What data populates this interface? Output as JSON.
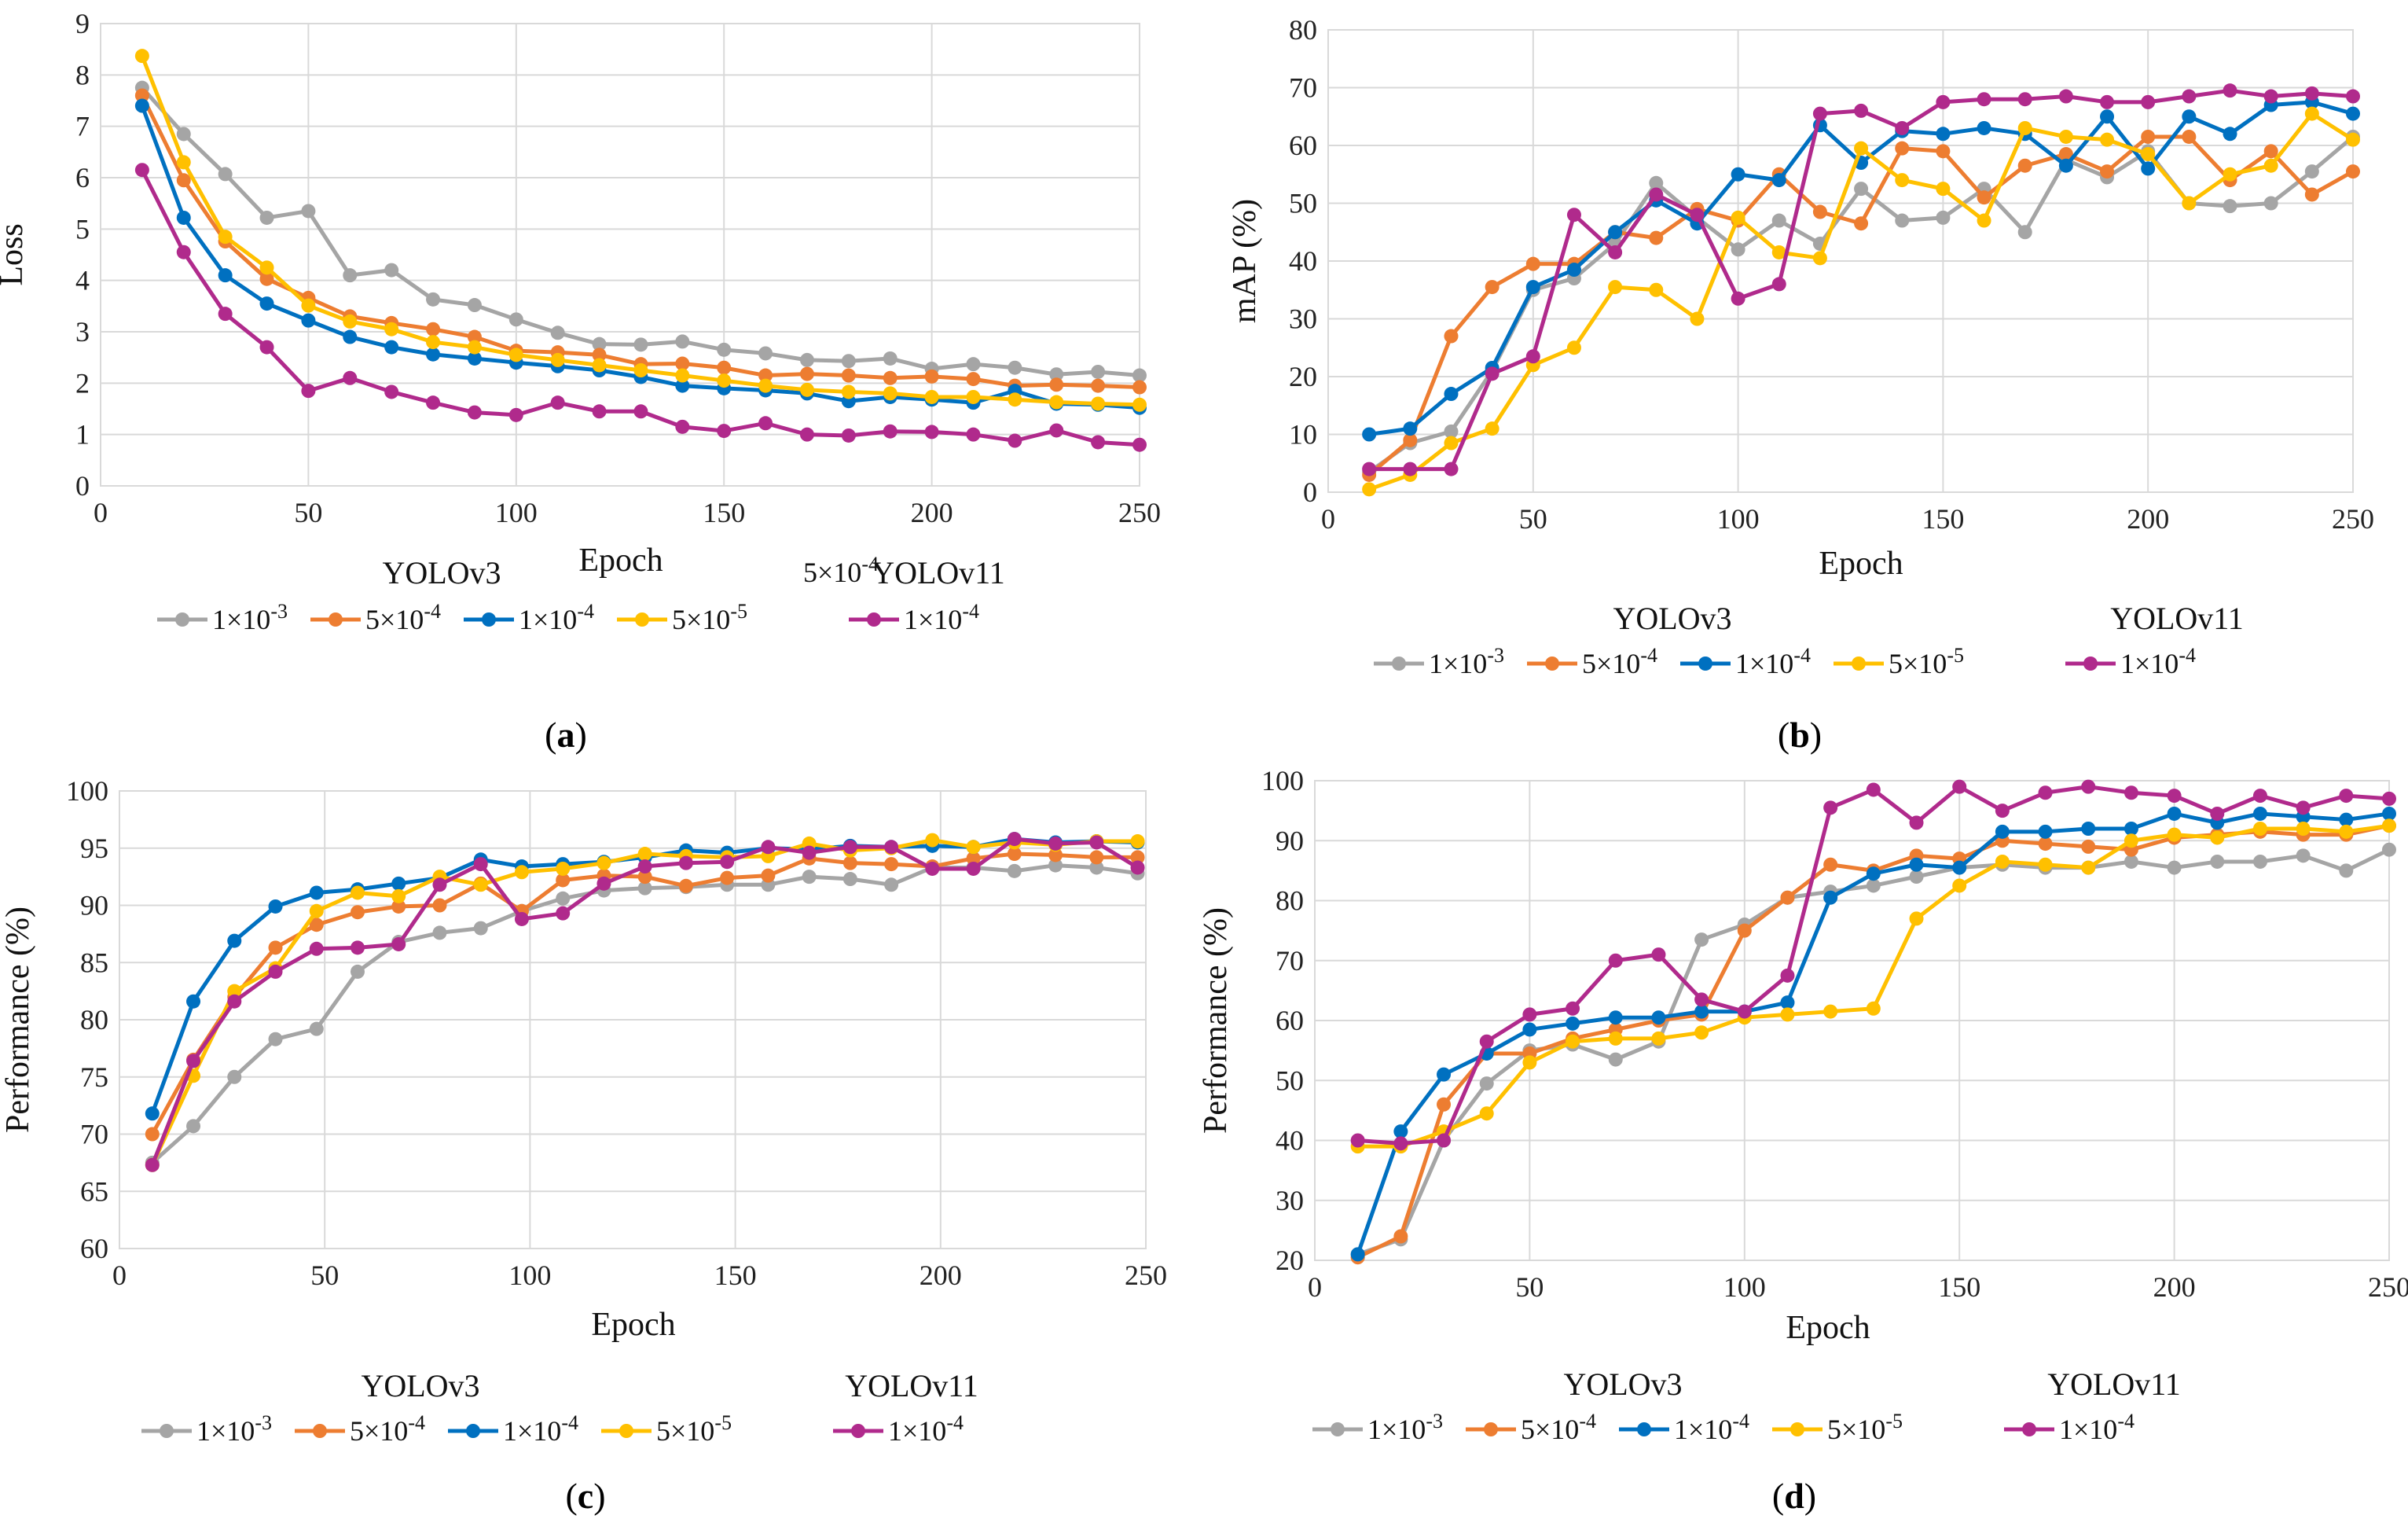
{
  "figure": {
    "legend_groups": {
      "left": "YOLOv3",
      "right": "YOLOv11"
    },
    "series_styles": [
      {
        "key": "s1",
        "label_base": "1×10",
        "label_exp": "-3",
        "color": "#A5A5A5"
      },
      {
        "key": "s2",
        "label_base": "5×10",
        "label_exp": "-4",
        "color": "#ED7D31"
      },
      {
        "key": "s3",
        "label_base": "1×10",
        "label_exp": "-4",
        "color": "#0070C0"
      },
      {
        "key": "s4",
        "label_base": "5×10",
        "label_exp": "-5",
        "color": "#FFC000"
      },
      {
        "key": "s5",
        "label_base": "1×10",
        "label_exp": "-4",
        "color": "#B02A8C"
      }
    ],
    "stray_note": {
      "base": "5×10",
      "exp": "-4"
    }
  },
  "chart_data": [
    {
      "id": "a",
      "caption": "a",
      "type": "line",
      "xlabel": "Epoch",
      "ylabel": "Loss",
      "xlim": [
        0,
        250
      ],
      "ylim": [
        0,
        9
      ],
      "xticks": [
        0,
        50,
        100,
        150,
        200,
        250
      ],
      "yticks": [
        0,
        1,
        2,
        3,
        4,
        5,
        6,
        7,
        8,
        9
      ],
      "x": [
        10,
        20,
        30,
        40,
        50,
        60,
        70,
        80,
        90,
        100,
        110,
        120,
        130,
        140,
        150,
        160,
        170,
        180,
        190,
        200,
        210,
        220,
        230,
        240,
        250
      ],
      "series": [
        {
          "name": "YOLOv3 1×10-3",
          "values": [
            7.75,
            6.85,
            6.07,
            5.22,
            5.35,
            4.1,
            4.2,
            3.63,
            3.52,
            3.24,
            2.98,
            2.76,
            2.75,
            2.81,
            2.65,
            2.58,
            2.45,
            2.43,
            2.48,
            2.28,
            2.37,
            2.3,
            2.17,
            2.22,
            2.15
          ]
        },
        {
          "name": "YOLOv3 5×10-4",
          "values": [
            7.6,
            5.95,
            4.76,
            4.03,
            3.66,
            3.3,
            3.17,
            3.05,
            2.9,
            2.63,
            2.6,
            2.55,
            2.37,
            2.38,
            2.3,
            2.15,
            2.18,
            2.15,
            2.1,
            2.13,
            2.08,
            1.95,
            1.97,
            1.95,
            1.92
          ]
        },
        {
          "name": "YOLOv3 1×10-4",
          "values": [
            7.4,
            5.22,
            4.1,
            3.55,
            3.22,
            2.9,
            2.7,
            2.56,
            2.48,
            2.4,
            2.33,
            2.25,
            2.12,
            1.95,
            1.9,
            1.86,
            1.8,
            1.65,
            1.73,
            1.68,
            1.62,
            1.85,
            1.6,
            1.58,
            1.52
          ]
        },
        {
          "name": "YOLOv3 5×10-5",
          "values": [
            8.37,
            6.3,
            4.85,
            4.25,
            3.51,
            3.2,
            3.05,
            2.8,
            2.7,
            2.55,
            2.45,
            2.35,
            2.25,
            2.15,
            2.05,
            1.95,
            1.87,
            1.83,
            1.8,
            1.73,
            1.73,
            1.68,
            1.63,
            1.6,
            1.58
          ]
        },
        {
          "name": "YOLOv11 1×10-4",
          "values": [
            6.15,
            4.55,
            3.35,
            2.7,
            1.85,
            2.1,
            1.83,
            1.62,
            1.43,
            1.38,
            1.62,
            1.45,
            1.45,
            1.15,
            1.07,
            1.22,
            1.0,
            0.98,
            1.06,
            1.05,
            1.0,
            0.88,
            1.08,
            0.85,
            0.8
          ]
        }
      ]
    },
    {
      "id": "b",
      "caption": "b",
      "type": "line",
      "xlabel": "Epoch",
      "ylabel": "mAP (%)",
      "xlim": [
        0,
        250
      ],
      "ylim": [
        0,
        80
      ],
      "xticks": [
        0,
        50,
        100,
        150,
        200,
        250
      ],
      "yticks": [
        0,
        10,
        20,
        30,
        40,
        50,
        60,
        70,
        80
      ],
      "x": [
        10,
        20,
        30,
        40,
        50,
        60,
        70,
        80,
        90,
        100,
        110,
        120,
        130,
        140,
        150,
        160,
        170,
        180,
        190,
        200,
        210,
        220,
        230,
        240,
        250
      ],
      "series": [
        {
          "name": "YOLOv3 1×10-3",
          "values": [
            3.5,
            8.5,
            10.5,
            21.0,
            35.0,
            37.0,
            43.0,
            53.5,
            47.5,
            42.0,
            47.0,
            43.0,
            52.5,
            47.0,
            47.5,
            52.5,
            45.0,
            57.5,
            54.5,
            59.0,
            50.0,
            49.5,
            50.0,
            55.5,
            61.5
          ]
        },
        {
          "name": "YOLOv3 5×10-4",
          "values": [
            3.0,
            9.0,
            27.0,
            35.5,
            39.5,
            39.5,
            45.0,
            44.0,
            49.0,
            47.0,
            55.0,
            48.5,
            46.5,
            59.5,
            59.0,
            51.0,
            56.5,
            58.5,
            55.5,
            61.5,
            61.5,
            54.0,
            59.0,
            51.5,
            55.5
          ]
        },
        {
          "name": "YOLOv3 1×10-4",
          "values": [
            10.0,
            11.0,
            17.0,
            21.5,
            35.5,
            38.5,
            45.0,
            50.5,
            46.5,
            55.0,
            54.0,
            63.5,
            57.0,
            62.5,
            62.0,
            63.0,
            62.0,
            56.5,
            65.0,
            56.0,
            65.0,
            62.0,
            67.0,
            67.5,
            65.5
          ]
        },
        {
          "name": "YOLOv3 5×10-5",
          "values": [
            0.5,
            3.0,
            8.5,
            11.0,
            22.0,
            25.0,
            35.5,
            35.0,
            30.0,
            47.5,
            41.5,
            40.5,
            59.5,
            54.0,
            52.5,
            47.0,
            63.0,
            61.5,
            61.0,
            58.5,
            50.0,
            55.0,
            56.5,
            65.5,
            61.0
          ]
        },
        {
          "name": "YOLOv11 1×10-4",
          "values": [
            4.0,
            4.0,
            4.0,
            20.5,
            23.5,
            48.0,
            41.5,
            51.5,
            48.0,
            33.5,
            36.0,
            65.5,
            66.0,
            63.0,
            67.5,
            68.0,
            68.0,
            68.5,
            67.5,
            67.5,
            68.5,
            69.5,
            68.5,
            69.0,
            68.5
          ]
        }
      ]
    },
    {
      "id": "c",
      "caption": "c",
      "type": "line",
      "xlabel": "Epoch",
      "ylabel": "Performance (%)",
      "xlim": [
        0,
        250
      ],
      "ylim": [
        60,
        100
      ],
      "xticks": [
        0,
        50,
        100,
        150,
        200,
        250
      ],
      "yticks": [
        60,
        65,
        70,
        75,
        80,
        85,
        90,
        95,
        100
      ],
      "x": [
        8,
        18,
        28,
        38,
        48,
        58,
        68,
        78,
        88,
        98,
        108,
        118,
        128,
        138,
        148,
        158,
        168,
        178,
        188,
        198,
        208,
        218,
        228,
        238,
        248
      ],
      "series": [
        {
          "name": "YOLOv3 1×10-3",
          "values": [
            67.5,
            70.7,
            75.0,
            78.3,
            79.2,
            84.2,
            86.8,
            87.6,
            88.0,
            89.5,
            90.6,
            91.3,
            91.5,
            91.6,
            91.8,
            91.8,
            92.5,
            92.3,
            91.8,
            93.3,
            93.3,
            93.0,
            93.5,
            93.3,
            92.8
          ]
        },
        {
          "name": "YOLOv3 5×10-4",
          "values": [
            70.0,
            76.5,
            82.0,
            86.3,
            88.3,
            89.4,
            89.9,
            90.0,
            91.9,
            89.5,
            92.2,
            92.6,
            92.5,
            91.7,
            92.4,
            92.6,
            94.1,
            93.7,
            93.6,
            93.4,
            94.1,
            94.5,
            94.4,
            94.2,
            94.2
          ]
        },
        {
          "name": "YOLOv3 1×10-4",
          "values": [
            71.8,
            81.6,
            86.9,
            89.9,
            91.1,
            91.4,
            91.9,
            92.4,
            94.0,
            93.4,
            93.6,
            93.8,
            94.2,
            94.8,
            94.6,
            95.0,
            94.9,
            95.2,
            95.1,
            95.2,
            95.1,
            95.8,
            95.5,
            95.6,
            95.5
          ]
        },
        {
          "name": "YOLOv3 5×10-5",
          "values": [
            67.3,
            75.1,
            82.5,
            84.5,
            89.5,
            91.1,
            90.8,
            92.5,
            91.8,
            92.9,
            93.2,
            93.7,
            94.5,
            94.3,
            94.2,
            94.3,
            95.4,
            94.8,
            95.0,
            95.7,
            95.1,
            95.5,
            95.3,
            95.6,
            95.6
          ]
        },
        {
          "name": "YOLOv11 1×10-4",
          "values": [
            67.3,
            76.4,
            81.6,
            84.2,
            86.2,
            86.3,
            86.6,
            91.8,
            93.6,
            88.8,
            89.3,
            91.9,
            93.4,
            93.7,
            93.8,
            95.1,
            94.6,
            95.1,
            95.1,
            93.2,
            93.2,
            95.8,
            95.4,
            95.5,
            93.3
          ]
        }
      ]
    },
    {
      "id": "d",
      "caption": "d",
      "type": "line",
      "xlabel": "Epoch",
      "ylabel": "Performance (%)",
      "xlim": [
        0,
        250
      ],
      "ylim": [
        20,
        100
      ],
      "xticks": [
        0,
        50,
        100,
        150,
        200,
        250
      ],
      "yticks": [
        20,
        30,
        40,
        50,
        60,
        70,
        80,
        90,
        100
      ],
      "x": [
        10,
        20,
        30,
        40,
        50,
        60,
        70,
        80,
        90,
        100,
        110,
        120,
        130,
        140,
        150,
        160,
        170,
        180,
        190,
        200,
        210,
        220,
        230,
        240,
        250
      ],
      "series": [
        {
          "name": "YOLOv3 1×10-3",
          "values": [
            21.0,
            23.5,
            40.0,
            49.5,
            55.0,
            56.0,
            53.5,
            56.5,
            73.5,
            76.0,
            80.5,
            81.5,
            82.5,
            84.0,
            85.5,
            86.0,
            85.5,
            85.5,
            86.5,
            85.5,
            86.5,
            86.5,
            87.5,
            85.0,
            88.5
          ]
        },
        {
          "name": "YOLOv3 5×10-4",
          "values": [
            20.5,
            24.0,
            46.0,
            54.5,
            54.5,
            57.0,
            58.5,
            60.0,
            61.0,
            75.0,
            80.5,
            86.0,
            85.0,
            87.5,
            87.0,
            90.0,
            89.5,
            89.0,
            88.5,
            90.5,
            91.0,
            91.5,
            91.0,
            91.0,
            92.5
          ]
        },
        {
          "name": "YOLOv3 1×10-4",
          "values": [
            21.0,
            41.5,
            51.0,
            54.5,
            58.5,
            59.5,
            60.5,
            60.5,
            61.5,
            61.5,
            63.0,
            80.5,
            84.5,
            86.0,
            85.5,
            91.5,
            91.5,
            92.0,
            92.0,
            94.5,
            93.0,
            94.5,
            94.0,
            93.5,
            94.5
          ]
        },
        {
          "name": "YOLOv3 5×10-5",
          "values": [
            39.0,
            39.0,
            41.5,
            44.5,
            53.0,
            56.5,
            57.0,
            57.0,
            58.0,
            60.5,
            61.0,
            61.5,
            62.0,
            77.0,
            82.5,
            86.5,
            86.0,
            85.5,
            90.0,
            91.0,
            90.5,
            92.0,
            92.0,
            91.5,
            92.5
          ]
        },
        {
          "name": "YOLOv11 1×10-4",
          "values": [
            40.0,
            39.5,
            40.0,
            56.5,
            61.0,
            62.0,
            70.0,
            71.0,
            63.5,
            61.5,
            67.5,
            95.5,
            98.5,
            93.0,
            99.0,
            95.0,
            98.0,
            99.0,
            98.0,
            97.5,
            94.5,
            97.5,
            95.5,
            97.5,
            97.0
          ]
        }
      ]
    }
  ]
}
